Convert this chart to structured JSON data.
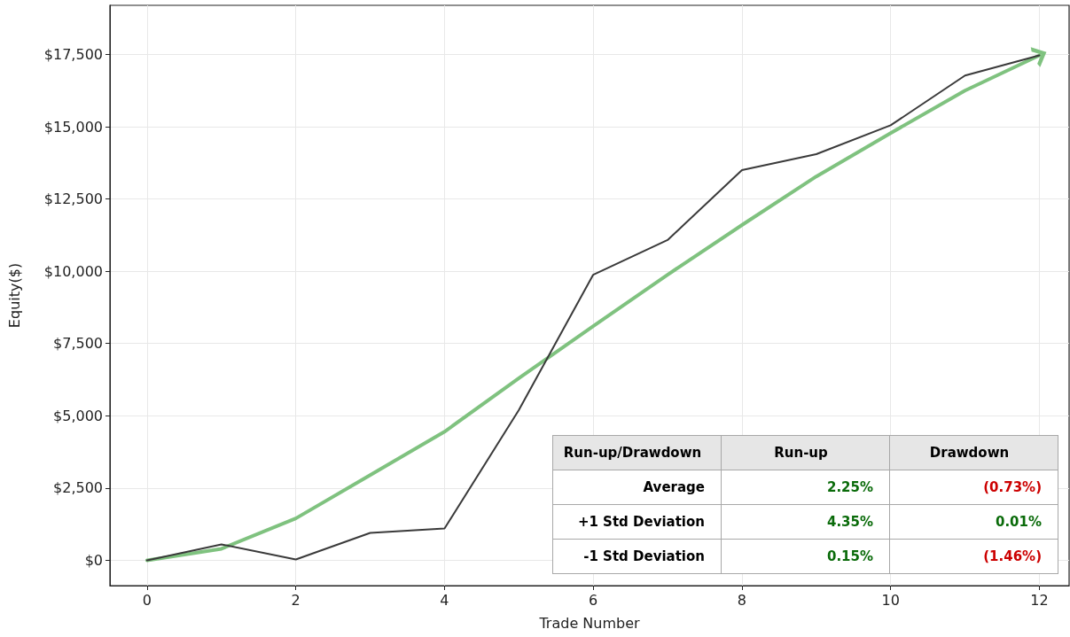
{
  "chart_data": {
    "type": "line",
    "xlabel": "Trade Number",
    "ylabel": "Equity($)",
    "x": [
      0,
      1,
      2,
      3,
      4,
      5,
      6,
      7,
      8,
      9,
      10,
      11,
      12
    ],
    "series": [
      {
        "color": "#3a3a3a",
        "values": [
          0,
          550,
          30,
          950,
          1100,
          5200,
          9880,
          11080,
          13500,
          14050,
          15050,
          16770,
          17470
        ]
      },
      {
        "type": "line",
        "color": "#7fc27f",
        "x": [
          0,
          1,
          2,
          3,
          4,
          5,
          6,
          7,
          8,
          9,
          10,
          11,
          12
        ],
        "values": [
          0,
          400,
          1450,
          2950,
          4450,
          6300,
          8100,
          9880,
          11600,
          13280,
          14780,
          16250,
          17470
        ]
      }
    ],
    "xlim": [
      -0.5,
      12.4
    ],
    "xticks": [
      0,
      2,
      4,
      6,
      8,
      10,
      12
    ],
    "ylim": [
      -875,
      19200
    ],
    "yticks": [
      {
        "value": 0,
        "label": "$0"
      },
      {
        "value": 2500,
        "label": "$2,500"
      },
      {
        "value": 5000,
        "label": "$5,000"
      },
      {
        "value": 7500,
        "label": "$7,500"
      },
      {
        "value": 10000,
        "label": "$10,000"
      },
      {
        "value": 12500,
        "label": "$12,500"
      },
      {
        "value": 15000,
        "label": "$15,000"
      },
      {
        "value": 17500,
        "label": "$17,500"
      }
    ],
    "grid": true,
    "marker": "none",
    "line_style": "solid",
    "annotations": [
      "Run-up/Drawdown",
      "Run-up",
      "Drawdown",
      "Average",
      "2.25%",
      "(0.73%)",
      "+1 Std Deviation",
      "4.35%",
      "0.01%",
      "-1 Std Deviation",
      "0.15%",
      "(1.46%)"
    ]
  }
}
